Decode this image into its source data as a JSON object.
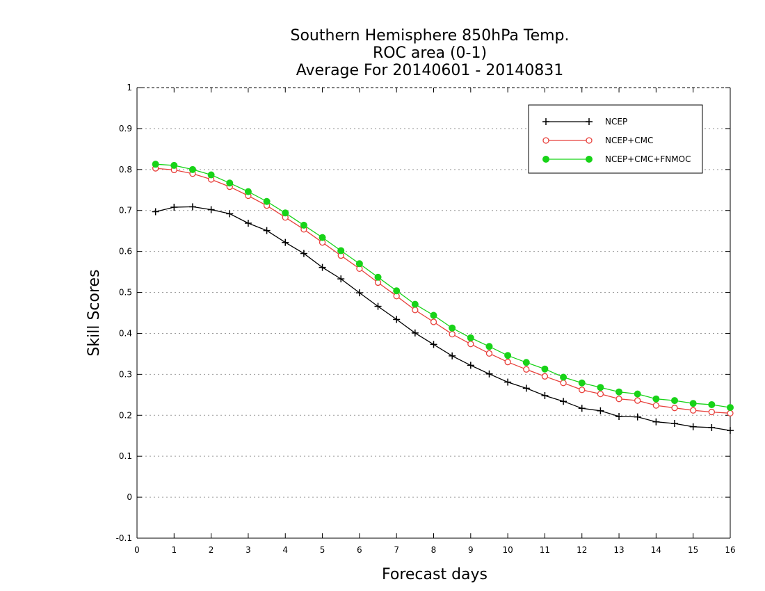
{
  "chart_data": {
    "type": "line",
    "title": [
      "Southern Hemisphere 850hPa Temp.",
      "ROC area (0-1)",
      "Average For 20140601 - 20140831"
    ],
    "xlabel": "Forecast days",
    "ylabel": "Skill Scores",
    "xlim": [
      0,
      16
    ],
    "ylim": [
      -0.1,
      1
    ],
    "x_ticks": [
      0,
      1,
      2,
      3,
      4,
      5,
      6,
      7,
      8,
      9,
      10,
      11,
      12,
      13,
      14,
      15,
      16
    ],
    "x_tick_labels": [
      "0",
      "1",
      "2",
      "3",
      "4",
      "5",
      "6",
      "7",
      "8",
      "9",
      "10",
      "11",
      "12",
      "13",
      "14",
      "15",
      "16"
    ],
    "y_ticks": [
      -0.1,
      0,
      0.1,
      0.2,
      0.3,
      0.4,
      0.5,
      0.6,
      0.7,
      0.8,
      0.9,
      1
    ],
    "y_tick_labels": [
      "-0.1",
      "0",
      "0.1",
      "0.2",
      "0.3",
      "0.4",
      "0.5",
      "0.6",
      "0.7",
      "0.8",
      "0.9",
      "1"
    ],
    "grid": "horizontal dotted",
    "legend_position": "top-right",
    "x": [
      0.5,
      1,
      1.5,
      2,
      2.5,
      3,
      3.5,
      4,
      4.5,
      5,
      5.5,
      6,
      6.5,
      7,
      7.5,
      8,
      8.5,
      9,
      9.5,
      10,
      10.5,
      11,
      11.5,
      12,
      12.5,
      13,
      13.5,
      14,
      14.5,
      15,
      15.5,
      16
    ],
    "series": [
      {
        "name": "NCEP",
        "color": "#000000",
        "marker": "plus",
        "values": [
          0.697,
          0.708,
          0.709,
          0.702,
          0.692,
          0.669,
          0.651,
          0.622,
          0.595,
          0.561,
          0.533,
          0.499,
          0.466,
          0.434,
          0.401,
          0.373,
          0.345,
          0.322,
          0.301,
          0.281,
          0.266,
          0.248,
          0.234,
          0.217,
          0.211,
          0.197,
          0.196,
          0.184,
          0.18,
          0.172,
          0.17,
          0.163
        ]
      },
      {
        "name": "NCEP+CMC",
        "color": "#e8413c",
        "marker": "open-circle",
        "values": [
          0.803,
          0.799,
          0.79,
          0.776,
          0.758,
          0.736,
          0.712,
          0.683,
          0.654,
          0.622,
          0.59,
          0.558,
          0.524,
          0.491,
          0.457,
          0.428,
          0.398,
          0.374,
          0.351,
          0.33,
          0.312,
          0.295,
          0.279,
          0.262,
          0.252,
          0.24,
          0.236,
          0.224,
          0.218,
          0.212,
          0.208,
          0.205
        ]
      },
      {
        "name": "NCEP+CMC+FNMOC",
        "color": "#18d318",
        "marker": "filled-circle",
        "values": [
          0.813,
          0.81,
          0.8,
          0.787,
          0.767,
          0.746,
          0.722,
          0.694,
          0.664,
          0.634,
          0.602,
          0.57,
          0.537,
          0.504,
          0.471,
          0.444,
          0.413,
          0.389,
          0.368,
          0.346,
          0.329,
          0.313,
          0.293,
          0.279,
          0.268,
          0.257,
          0.252,
          0.24,
          0.236,
          0.229,
          0.226,
          0.219
        ]
      }
    ]
  }
}
